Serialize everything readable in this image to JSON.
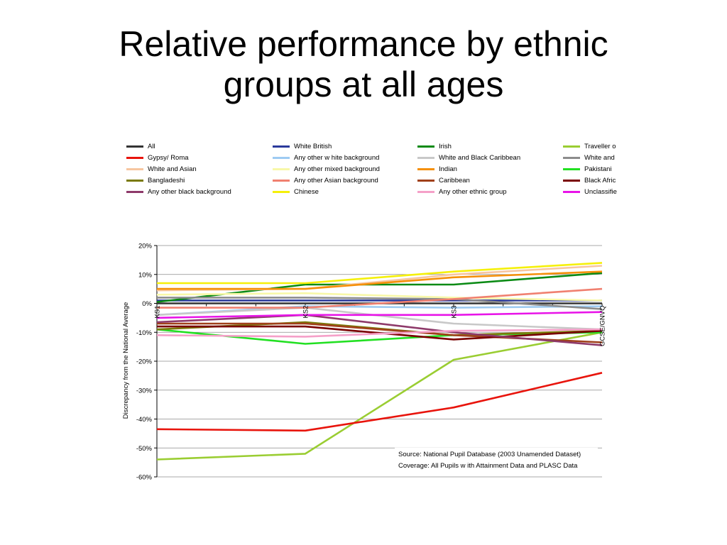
{
  "title_line1": "Relative performance by ethnic",
  "title_line2": "groups at all ages",
  "chart_data": {
    "type": "line",
    "x": [
      "KS1",
      "KS2",
      "KS3",
      "GCSE/GNVQ"
    ],
    "ylabel": "Discrepancy from the National Average",
    "ylim": [
      -60,
      20
    ],
    "yticks": [
      "20%",
      "10%",
      "0%",
      "-10%",
      "-20%",
      "-30%",
      "-40%",
      "-50%",
      "-60%"
    ],
    "grid": true,
    "legend_position": "top",
    "source_line1": "Source: National Pupil Database (2003 Unamended Dataset)",
    "source_line2": "Coverage: All Pupils w ith Attainment Data and PLASC Data",
    "series": [
      {
        "name": "All",
        "color": "#333333",
        "values": [
          0,
          0,
          0,
          0
        ]
      },
      {
        "name": "White British",
        "color": "#2b3a9c",
        "values": [
          1,
          1,
          1,
          1
        ]
      },
      {
        "name": "Irish",
        "color": "#0a8a14",
        "values": [
          0.5,
          6.5,
          6.5,
          10.5
        ]
      },
      {
        "name": "Traveller o",
        "color": "#9acd32",
        "values": [
          -54,
          -52,
          -19.5,
          -10
        ]
      },
      {
        "name": "Gypsy/ Roma",
        "color": "#e8140c",
        "values": [
          -43.5,
          -44,
          -36,
          -24
        ]
      },
      {
        "name": "Any other w hite background",
        "color": "#9ecbf2",
        "values": [
          -4,
          -1,
          -1.5,
          -1
        ]
      },
      {
        "name": "White and Black Caribbean",
        "color": "#c8c8c8",
        "values": [
          -4,
          -1.5,
          -7,
          -9
        ]
      },
      {
        "name": "White and",
        "color": "#8c8c8c",
        "values": [
          2,
          2,
          1.5,
          -2
        ]
      },
      {
        "name": "White and Asian",
        "color": "#f7c6a0",
        "values": [
          4.5,
          5,
          10,
          13
        ]
      },
      {
        "name": "Any other mixed background",
        "color": "#f8f8a8",
        "values": [
          3,
          3.5,
          2,
          1
        ]
      },
      {
        "name": "Indian",
        "color": "#f5900a",
        "values": [
          5,
          5,
          9,
          11
        ]
      },
      {
        "name": "Pakistani",
        "color": "#22e022",
        "values": [
          -9,
          -14,
          -11,
          -10
        ]
      },
      {
        "name": "Bangladeshi",
        "color": "#7a7a0a",
        "values": [
          -9,
          -6.5,
          -11,
          -9.5
        ]
      },
      {
        "name": "Any other Asian background",
        "color": "#f08070",
        "values": [
          -1.5,
          -1.5,
          1.5,
          5
        ]
      },
      {
        "name": "Caribbean",
        "color": "#a0401a",
        "values": [
          -7,
          -7,
          -11,
          -13.5
        ]
      },
      {
        "name": "Black Afric",
        "color": "#7a0000",
        "values": [
          -8,
          -8,
          -12.5,
          -9.5
        ]
      },
      {
        "name": "Any other black background",
        "color": "#8e3a6a",
        "values": [
          -6.5,
          -4,
          -10,
          -14.5
        ]
      },
      {
        "name": "Chinese",
        "color": "#f5f00a",
        "values": [
          7,
          7,
          11,
          14
        ]
      },
      {
        "name": "Any other ethnic group",
        "color": "#f5a0c8",
        "values": [
          -11,
          -11.5,
          -9.5,
          -9
        ]
      },
      {
        "name": "Unclassifie",
        "color": "#e814e8",
        "values": [
          -5,
          -4,
          -4,
          -3
        ]
      }
    ]
  }
}
